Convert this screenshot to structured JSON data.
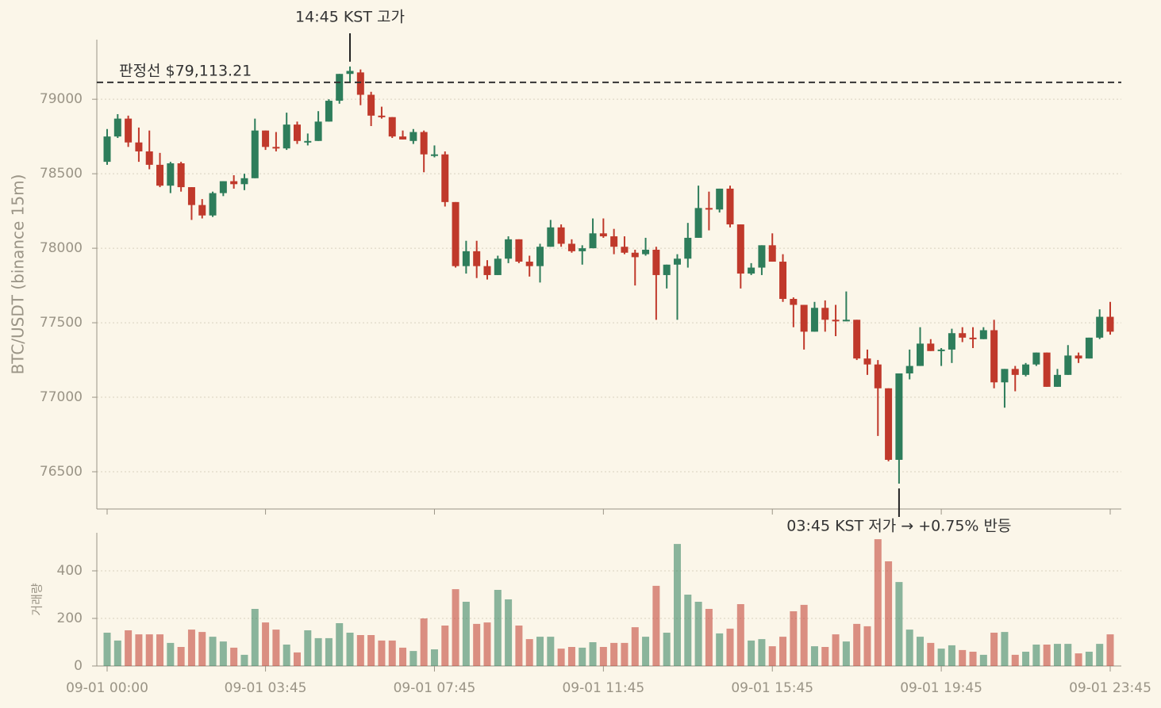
{
  "chart_data": [
    {
      "type": "candlestick",
      "ylabel": "BTC/USDT (binance 15m)",
      "up_color": "#2e7d5b",
      "down_color": "#c0392b",
      "open": [
        78580,
        78750,
        78870,
        78710,
        78650,
        78560,
        78420,
        78570,
        78410,
        78290,
        78220,
        78370,
        78450,
        78430,
        78470,
        78790,
        78680,
        78670,
        78830,
        78710,
        78720,
        78850,
        78990,
        79170,
        79180,
        79030,
        78890,
        78880,
        78750,
        78720,
        78780,
        78620,
        78630,
        78310,
        77880,
        77980,
        77880,
        77820,
        77930,
        78060,
        77910,
        77880,
        78010,
        78140,
        78030,
        77980,
        78000,
        78100,
        78080,
        78010,
        77970,
        77960,
        77990,
        77820,
        77890,
        77930,
        78070,
        78270,
        78260,
        78400,
        78160,
        77830,
        77870,
        78020,
        77910,
        77660,
        77620,
        77440,
        77600,
        77520,
        77510,
        77520,
        77260,
        77220,
        77060,
        76580,
        77160,
        77210,
        77360,
        77310,
        77320,
        77430,
        77400,
        77390,
        77450,
        77100,
        77190,
        77150,
        77220,
        77300,
        77070,
        77150,
        77280,
        77260,
        77400,
        77540
      ],
      "high": [
        78800,
        78900,
        78890,
        78810,
        78790,
        78640,
        78580,
        78580,
        78410,
        78330,
        78380,
        78450,
        78490,
        78500,
        78870,
        78790,
        78780,
        78910,
        78850,
        78770,
        78920,
        79000,
        79170,
        79220,
        79200,
        79050,
        78950,
        78880,
        78790,
        78800,
        78790,
        78690,
        78650,
        78310,
        78050,
        78050,
        77920,
        77950,
        78080,
        78060,
        77950,
        78030,
        78190,
        78160,
        78060,
        78020,
        78200,
        78200,
        78130,
        78080,
        77990,
        78070,
        78010,
        77890,
        77960,
        78170,
        78420,
        78380,
        78400,
        78420,
        78160,
        77900,
        78020,
        78100,
        77960,
        77670,
        77620,
        77640,
        77650,
        77620,
        77710,
        77520,
        77320,
        77250,
        77060,
        77160,
        77320,
        77470,
        77390,
        77330,
        77460,
        77470,
        77470,
        77470,
        77520,
        77190,
        77210,
        77230,
        77300,
        77300,
        77190,
        77350,
        77300,
        77400,
        77590,
        77640
      ],
      "low": [
        78560,
        78740,
        78680,
        78580,
        78530,
        78410,
        78370,
        78380,
        78190,
        78200,
        78210,
        78350,
        78400,
        78390,
        78470,
        78660,
        78650,
        78660,
        78700,
        78690,
        78720,
        78850,
        78970,
        79110,
        78960,
        78820,
        78870,
        78740,
        78730,
        78700,
        78510,
        78610,
        78280,
        77870,
        77830,
        77800,
        77790,
        77820,
        77900,
        77900,
        77810,
        77770,
        78010,
        78010,
        77970,
        77890,
        78000,
        78070,
        77960,
        77960,
        77750,
        77950,
        77520,
        77730,
        77520,
        77870,
        78070,
        78120,
        78240,
        78140,
        77730,
        77820,
        77820,
        77910,
        77640,
        77470,
        77320,
        77440,
        77440,
        77410,
        77510,
        77250,
        77150,
        76740,
        76570,
        76420,
        77120,
        77210,
        77310,
        77210,
        77230,
        77370,
        77330,
        77390,
        77060,
        76930,
        77040,
        77140,
        77210,
        77070,
        77070,
        77150,
        77230,
        77260,
        77390,
        77420
      ],
      "close": [
        78750,
        78870,
        78710,
        78650,
        78560,
        78420,
        78570,
        78410,
        78290,
        78220,
        78370,
        78450,
        78430,
        78470,
        78790,
        78680,
        78670,
        78830,
        78720,
        78720,
        78850,
        78990,
        79170,
        79190,
        79030,
        78890,
        78880,
        78750,
        78730,
        78780,
        78630,
        78630,
        78310,
        77880,
        77980,
        77880,
        77820,
        77930,
        78060,
        77910,
        77880,
        78010,
        78140,
        78030,
        77980,
        78000,
        78100,
        78080,
        78010,
        77970,
        77940,
        77990,
        77820,
        77890,
        77930,
        78070,
        78270,
        78260,
        78400,
        78160,
        77830,
        77870,
        78020,
        77910,
        77660,
        77620,
        77440,
        77600,
        77520,
        77510,
        77520,
        77260,
        77220,
        77060,
        76580,
        77160,
        77210,
        77360,
        77310,
        77320,
        77430,
        77400,
        77390,
        77450,
        77100,
        77190,
        77150,
        77220,
        77300,
        77070,
        77150,
        77280,
        77260,
        77400,
        77540,
        77440
      ],
      "ylim": [
        76250,
        79400
      ],
      "yticks": [
        76500,
        77000,
        77500,
        78000,
        78500,
        79000
      ],
      "grid": true,
      "hline": {
        "value": 79113.21,
        "label": "판정선 $79,113.21"
      },
      "annotations": {
        "high": "14:45 KST 고가",
        "low": "03:45 KST 저가 → +0.75% 반등"
      }
    },
    {
      "type": "bar",
      "ylabel": "거래량",
      "categories": [
        "09-01 00:00",
        null,
        null,
        null,
        null,
        null,
        null,
        null,
        null,
        null,
        null,
        null,
        null,
        null,
        null,
        "09-01 03:45",
        null,
        null,
        null,
        null,
        null,
        null,
        null,
        null,
        null,
        null,
        null,
        null,
        null,
        null,
        null,
        "09-01 07:45",
        null,
        null,
        null,
        null,
        null,
        null,
        null,
        null,
        null,
        null,
        null,
        null,
        null,
        null,
        null,
        "09-01 11:45",
        null,
        null,
        null,
        null,
        null,
        null,
        null,
        null,
        null,
        null,
        null,
        null,
        null,
        null,
        null,
        "09-01 15:45",
        null,
        null,
        null,
        null,
        null,
        null,
        null,
        null,
        null,
        null,
        null,
        null,
        null,
        null,
        null,
        "09-01 19:45",
        null,
        null,
        null,
        null,
        null,
        null,
        null,
        null,
        null,
        null,
        null,
        null,
        null,
        null,
        null,
        "09-01 23:45"
      ],
      "values": [
        140,
        107,
        150,
        133,
        133,
        133,
        97,
        80,
        153,
        143,
        123,
        103,
        77,
        47,
        240,
        183,
        153,
        90,
        57,
        150,
        117,
        117,
        180,
        140,
        130,
        130,
        107,
        107,
        77,
        63,
        200,
        70,
        170,
        323,
        270,
        177,
        183,
        320,
        280,
        170,
        113,
        123,
        123,
        73,
        80,
        77,
        100,
        80,
        97,
        97,
        163,
        123,
        337,
        140,
        513,
        300,
        270,
        240,
        137,
        157,
        260,
        107,
        113,
        83,
        123,
        230,
        257,
        83,
        80,
        133,
        103,
        177,
        167,
        533,
        440,
        353,
        153,
        123,
        97,
        73,
        87,
        67,
        60,
        47,
        140,
        143,
        47,
        60,
        90,
        90,
        93,
        93,
        53,
        60,
        93,
        133
      ],
      "ylim": [
        0,
        560
      ],
      "yticks": [
        0,
        200,
        400
      ],
      "grid": true
    }
  ]
}
